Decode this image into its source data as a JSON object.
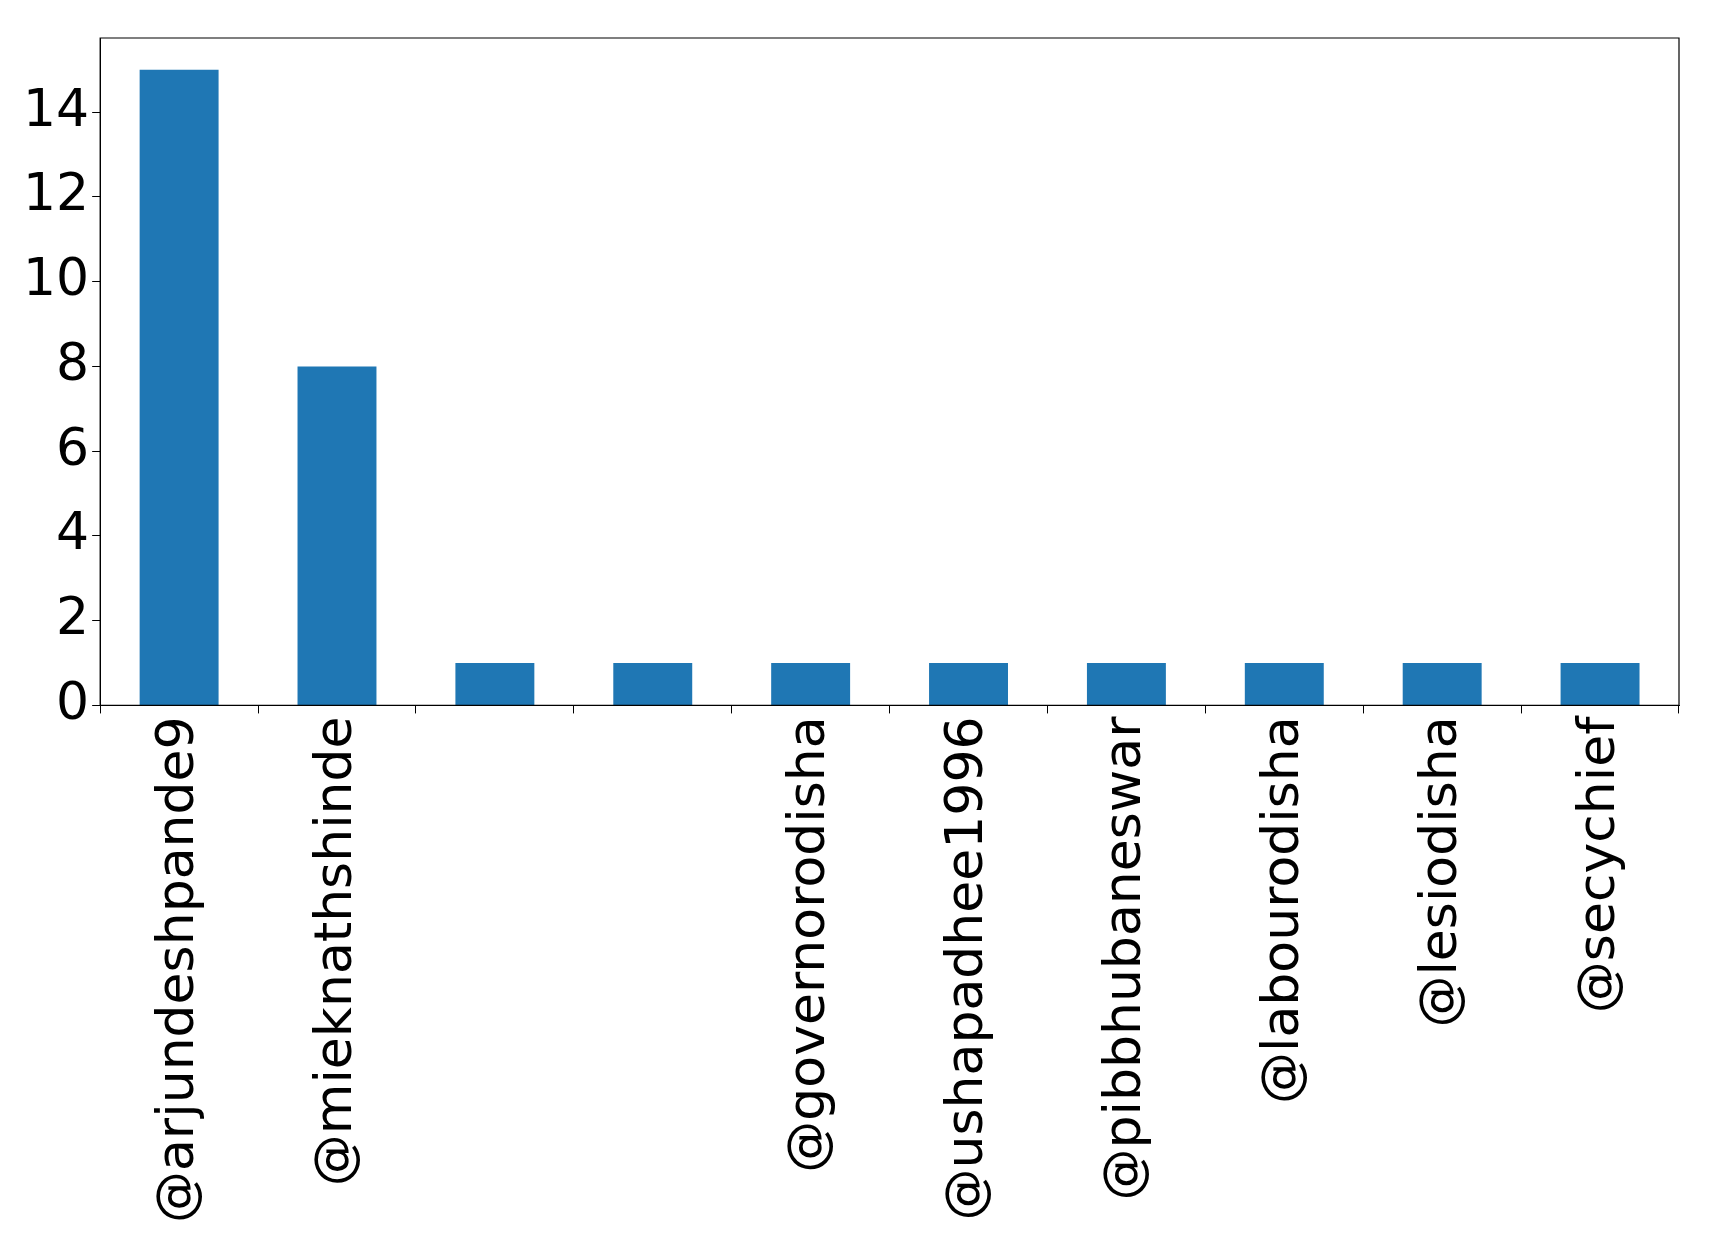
{
  "chart_data": {
    "type": "bar",
    "categories": [
      "@arjundeshpande9",
      "@mieknathshinde",
      null,
      null,
      "@governorodisha",
      "@ushapadhee1996",
      "@pibbhubaneswar",
      "@labourodisha",
      "@lesiodisha",
      "@secychief"
    ],
    "values": [
      15,
      8,
      1,
      1,
      1,
      1,
      1,
      1,
      1,
      1
    ],
    "color": "#1f77b4",
    "ylim": [
      0,
      15.75
    ],
    "yticks": [
      0,
      2,
      4,
      6,
      8,
      10,
      12,
      14
    ],
    "grid": false,
    "legend": false
  }
}
